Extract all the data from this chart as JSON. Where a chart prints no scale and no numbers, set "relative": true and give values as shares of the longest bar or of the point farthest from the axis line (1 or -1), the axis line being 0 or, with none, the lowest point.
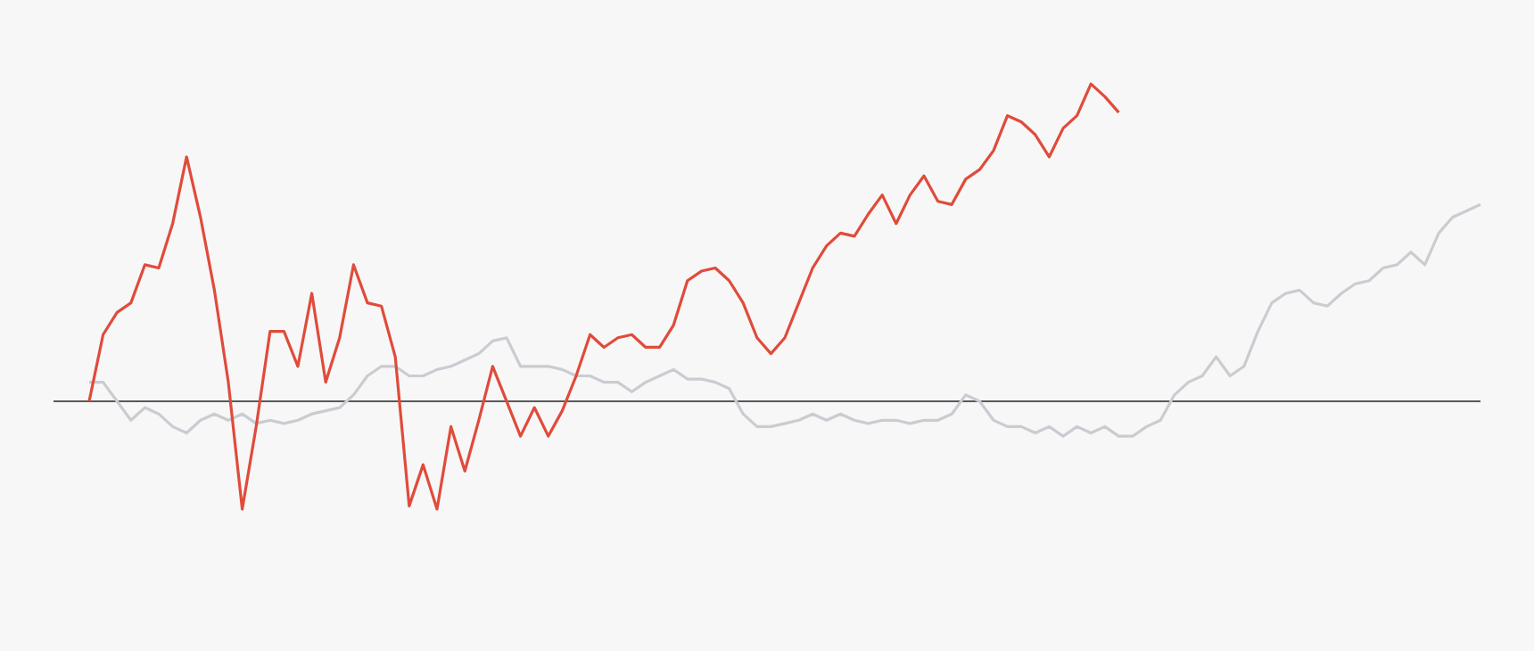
{
  "chart_data": {
    "type": "line",
    "relative": true,
    "categories": [
      null,
      null,
      null,
      null,
      null,
      null,
      null,
      null,
      null,
      null,
      null,
      null,
      null,
      null,
      null,
      null,
      null,
      null,
      null,
      null,
      null,
      null,
      null,
      null,
      null,
      null,
      null,
      null,
      null,
      null,
      null,
      null,
      null,
      null,
      null,
      null,
      null,
      null,
      null,
      null,
      null,
      null,
      null,
      null,
      null,
      null,
      null,
      null,
      null,
      null,
      null,
      null,
      null,
      null,
      null,
      null,
      null,
      null,
      null,
      null,
      null,
      null,
      null,
      null,
      null,
      null,
      null,
      null,
      null,
      null,
      null,
      null,
      null,
      null,
      null,
      null,
      null,
      null,
      null,
      null,
      null,
      null,
      null,
      null,
      null,
      null,
      null,
      null,
      null,
      null,
      null,
      null,
      null,
      null,
      null,
      null,
      null,
      null,
      null,
      null,
      null
    ],
    "series": [
      {
        "color": "#c9ccd1",
        "values": [
          0.06,
          0.06,
          0,
          -0.06,
          -0.02,
          -0.04,
          -0.08,
          -0.1,
          -0.06,
          -0.04,
          -0.06,
          -0.04,
          -0.07,
          -0.06,
          -0.07,
          -0.06,
          -0.04,
          -0.03,
          -0.02,
          0.02,
          0.08,
          0.11,
          0.11,
          0.08,
          0.08,
          0.1,
          0.11,
          0.13,
          0.15,
          0.19,
          0.2,
          0.11,
          0.11,
          0.11,
          0.1,
          0.08,
          0.08,
          0.06,
          0.06,
          0.03,
          0.06,
          0.08,
          0.1,
          0.07,
          0.07,
          0.06,
          0.04,
          -0.04,
          -0.08,
          -0.08,
          -0.07,
          -0.06,
          -0.04,
          -0.06,
          -0.04,
          -0.06,
          -0.07,
          -0.06,
          -0.06,
          -0.07,
          -0.06,
          -0.06,
          -0.04,
          0.02,
          0,
          -0.06,
          -0.08,
          -0.08,
          -0.1,
          -0.08,
          -0.11,
          -0.08,
          -0.1,
          -0.08,
          -0.11,
          -0.11,
          -0.08,
          -0.06,
          0.02,
          0.06,
          0.08,
          0.14,
          0.08,
          0.11,
          0.22,
          0.31,
          0.34,
          0.35,
          0.31,
          0.3,
          0.34,
          0.37,
          0.38,
          0.42,
          0.43,
          0.47,
          0.43,
          0.53,
          0.58,
          0.6,
          0.62
        ]
      },
      {
        "color": "#e04b3b",
        "values": [
          0,
          0.21,
          0.28,
          0.31,
          0.43,
          0.42,
          0.56,
          0.77,
          0.58,
          0.35,
          0.06,
          -0.34,
          -0.08,
          0.22,
          0.22,
          0.11,
          0.34,
          0.06,
          0.2,
          0.43,
          0.31,
          0.3,
          0.14,
          -0.33,
          -0.2,
          -0.34,
          -0.08,
          -0.22,
          -0.06,
          0.11,
          0,
          -0.11,
          -0.02,
          -0.11,
          -0.03,
          0.08,
          0.21,
          0.17,
          0.2,
          0.21,
          0.17,
          0.17,
          0.24,
          0.38,
          0.41,
          0.42,
          0.38,
          0.31,
          0.2,
          0.15,
          0.2,
          0.31,
          0.42,
          0.49,
          0.53,
          0.52,
          0.59,
          0.65,
          0.56,
          0.65,
          0.71,
          0.63,
          0.62,
          0.7,
          0.73,
          0.79,
          0.9,
          0.88,
          0.84,
          0.77,
          0.86,
          0.9,
          1,
          0.96,
          0.91,
          null,
          null,
          null,
          null,
          null,
          null,
          null,
          null,
          null,
          null,
          null,
          null,
          null,
          null,
          null,
          null,
          null,
          null,
          null,
          null,
          null,
          null,
          null,
          null,
          null,
          null
        ]
      }
    ]
  }
}
